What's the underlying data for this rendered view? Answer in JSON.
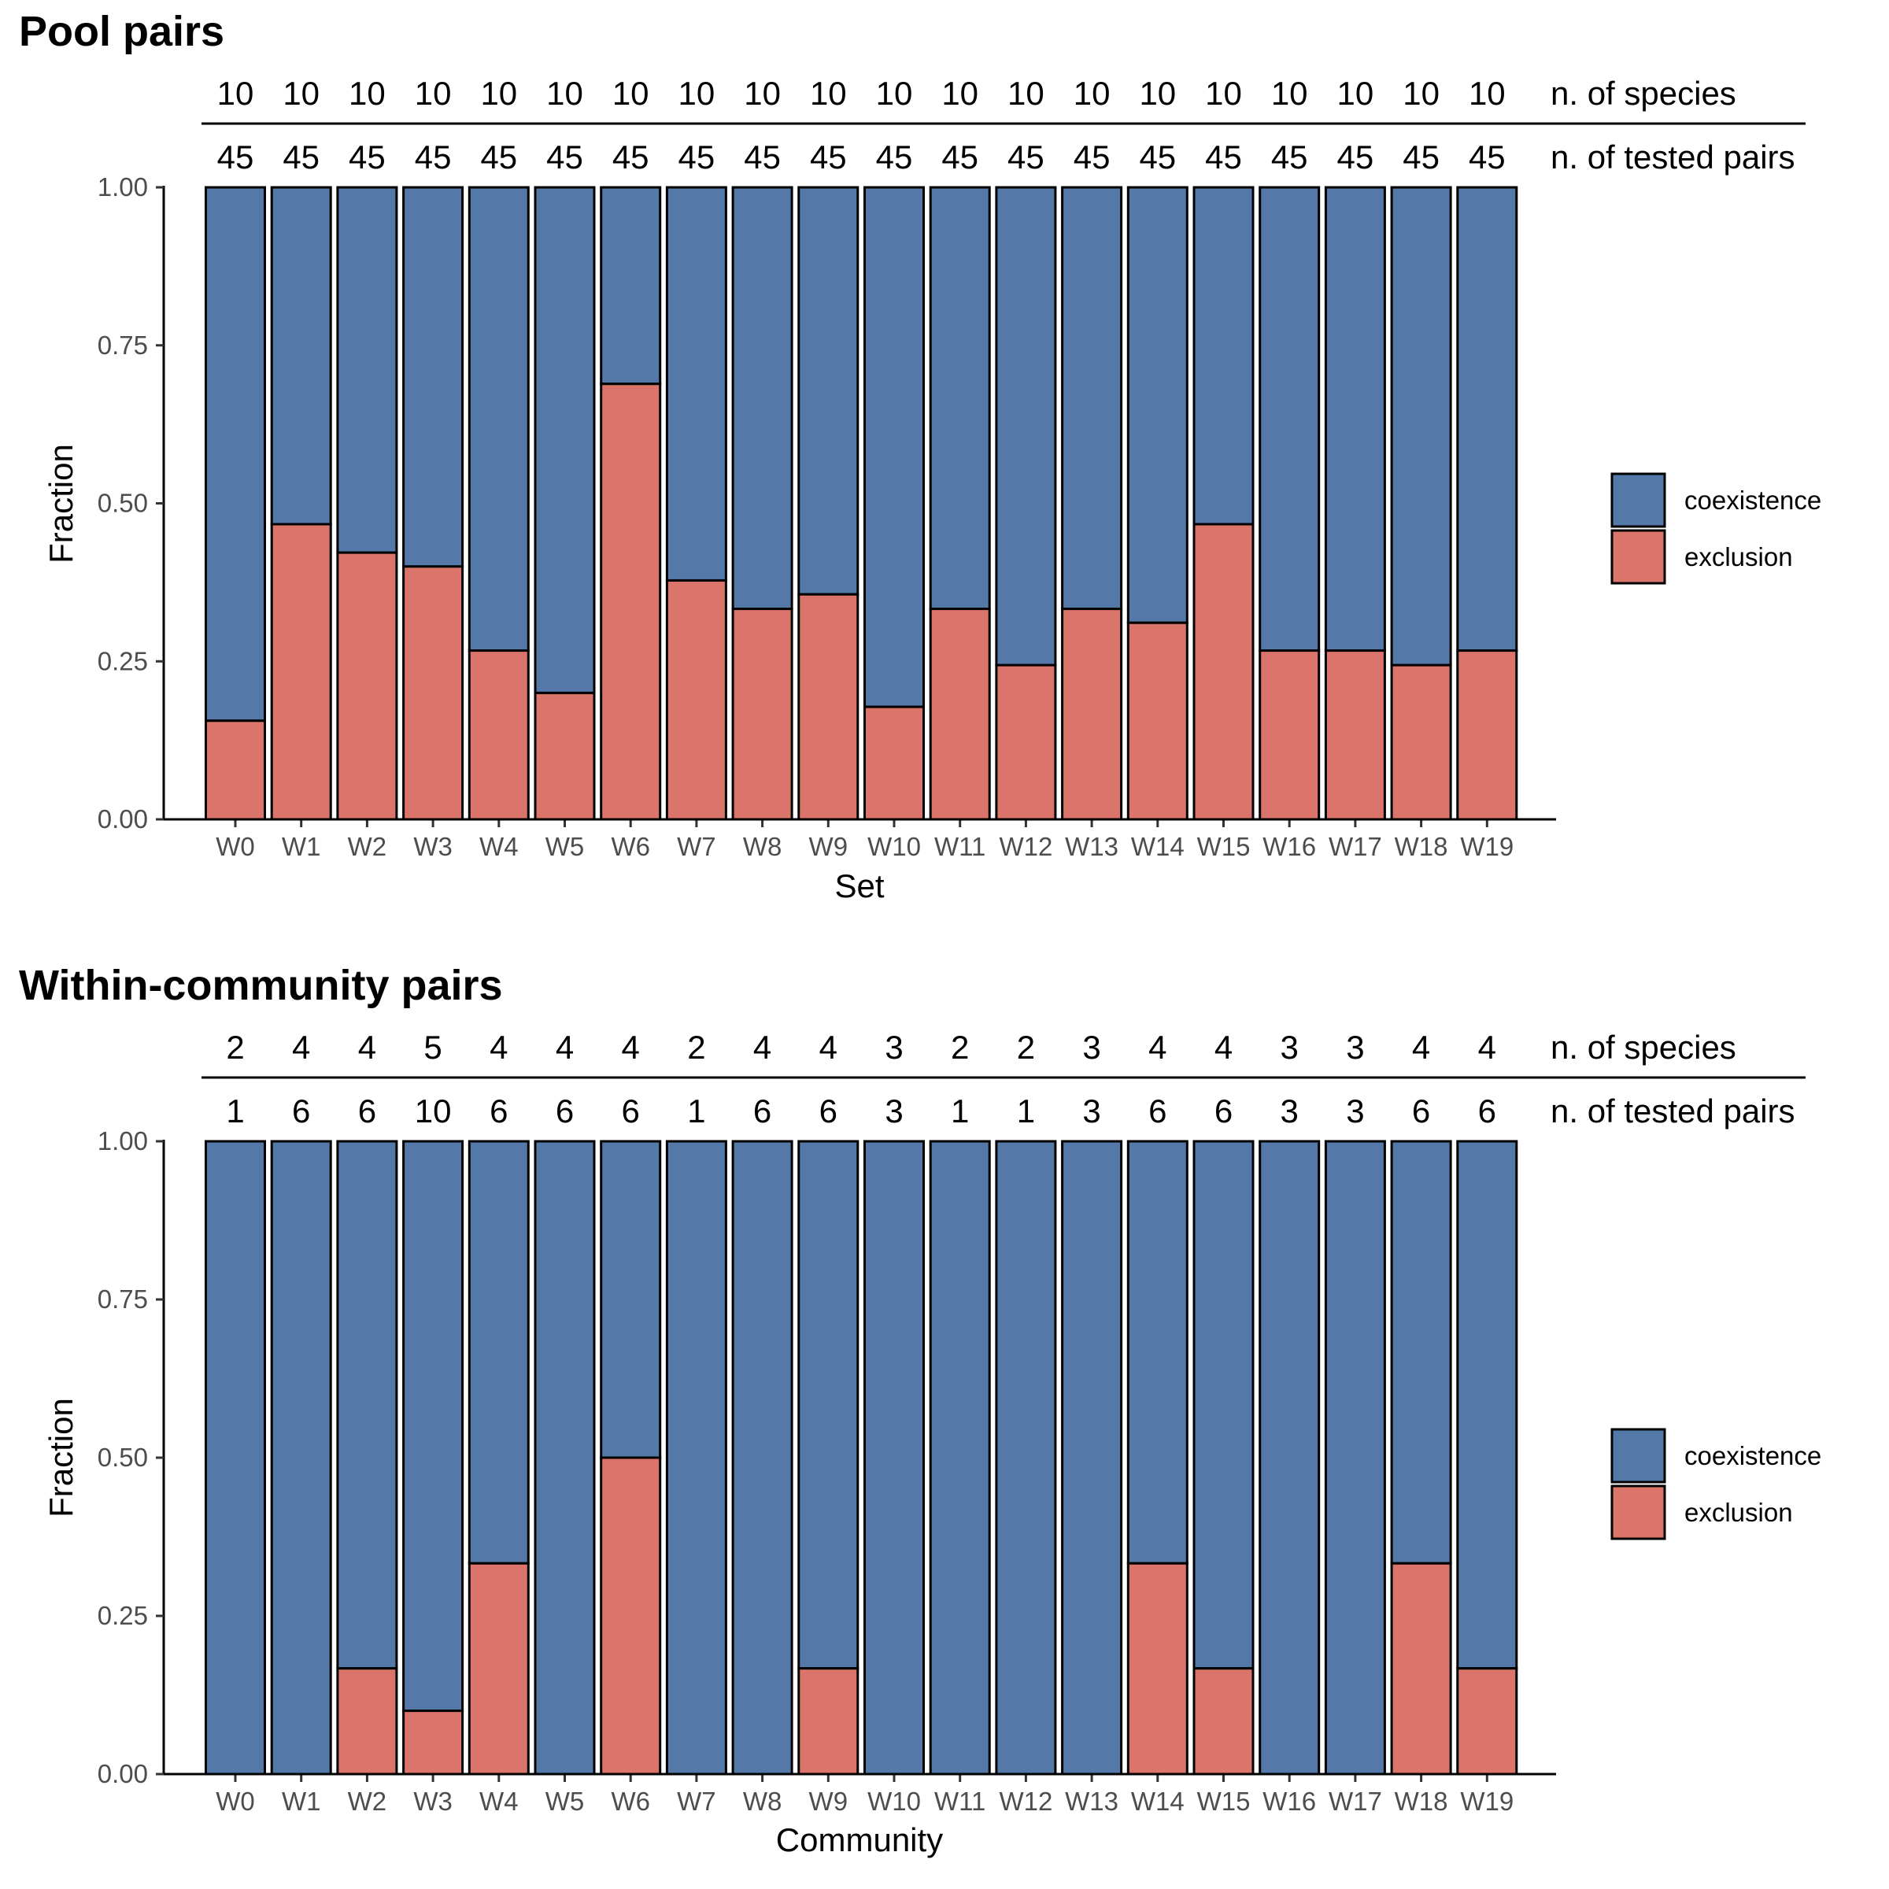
{
  "chart_data": [
    {
      "type": "bar",
      "stacked": true,
      "title": "Pool pairs",
      "xlabel": "Set",
      "ylabel": "Fraction",
      "ylim": [
        0,
        1
      ],
      "yticks": [
        "0.00",
        "0.25",
        "0.50",
        "0.75",
        "1.00"
      ],
      "categories": [
        "W0",
        "W1",
        "W2",
        "W3",
        "W4",
        "W5",
        "W6",
        "W7",
        "W8",
        "W9",
        "W10",
        "W11",
        "W12",
        "W13",
        "W14",
        "W15",
        "W16",
        "W17",
        "W18",
        "W19"
      ],
      "series": [
        {
          "name": "exclusion",
          "color": "#DB746B",
          "values": [
            0.156,
            0.467,
            0.422,
            0.4,
            0.267,
            0.2,
            0.689,
            0.378,
            0.333,
            0.356,
            0.178,
            0.333,
            0.244,
            0.333,
            0.311,
            0.467,
            0.267,
            0.267,
            0.244,
            0.267
          ]
        },
        {
          "name": "coexistence",
          "color": "#5479A8",
          "values": [
            0.844,
            0.533,
            0.578,
            0.6,
            0.733,
            0.8,
            0.311,
            0.622,
            0.667,
            0.644,
            0.822,
            0.667,
            0.756,
            0.667,
            0.689,
            0.533,
            0.733,
            0.733,
            0.756,
            0.733
          ]
        }
      ],
      "n_species_label": "n. of species",
      "n_species": [
        "10",
        "10",
        "10",
        "10",
        "10",
        "10",
        "10",
        "10",
        "10",
        "10",
        "10",
        "10",
        "10",
        "10",
        "10",
        "10",
        "10",
        "10",
        "10",
        "10"
      ],
      "n_pairs_label": "n. of tested pairs",
      "n_pairs": [
        "45",
        "45",
        "45",
        "45",
        "45",
        "45",
        "45",
        "45",
        "45",
        "45",
        "45",
        "45",
        "45",
        "45",
        "45",
        "45",
        "45",
        "45",
        "45",
        "45"
      ],
      "legend": [
        "coexistence",
        "exclusion"
      ],
      "legend_position": "right",
      "grid": false
    },
    {
      "type": "bar",
      "stacked": true,
      "title": "Within-community pairs",
      "xlabel": "Community",
      "ylabel": "Fraction",
      "ylim": [
        0,
        1
      ],
      "yticks": [
        "0.00",
        "0.25",
        "0.50",
        "0.75",
        "1.00"
      ],
      "categories": [
        "W0",
        "W1",
        "W2",
        "W3",
        "W4",
        "W5",
        "W6",
        "W7",
        "W8",
        "W9",
        "W10",
        "W11",
        "W12",
        "W13",
        "W14",
        "W15",
        "W16",
        "W17",
        "W18",
        "W19"
      ],
      "series": [
        {
          "name": "exclusion",
          "color": "#DB746B",
          "values": [
            0,
            0,
            0.167,
            0.1,
            0.333,
            0,
            0.5,
            0,
            0,
            0.167,
            0,
            0,
            0,
            0,
            0.333,
            0.167,
            0,
            0,
            0.333,
            0.167
          ]
        },
        {
          "name": "coexistence",
          "color": "#5479A8",
          "values": [
            1,
            1,
            0.833,
            0.9,
            0.667,
            1,
            0.5,
            1,
            1,
            0.833,
            1,
            1,
            1,
            1,
            0.667,
            0.833,
            1,
            1,
            0.667,
            0.833
          ]
        }
      ],
      "n_species_label": "n. of species",
      "n_species": [
        "2",
        "4",
        "4",
        "5",
        "4",
        "4",
        "4",
        "2",
        "4",
        "4",
        "3",
        "2",
        "2",
        "3",
        "4",
        "4",
        "3",
        "3",
        "4",
        "4"
      ],
      "n_pairs_label": "n. of tested pairs",
      "n_pairs": [
        "1",
        "6",
        "6",
        "10",
        "6",
        "6",
        "6",
        "1",
        "6",
        "6",
        "3",
        "1",
        "1",
        "3",
        "6",
        "6",
        "3",
        "3",
        "6",
        "6"
      ],
      "legend": [
        "coexistence",
        "exclusion"
      ],
      "legend_position": "right",
      "grid": false
    }
  ]
}
